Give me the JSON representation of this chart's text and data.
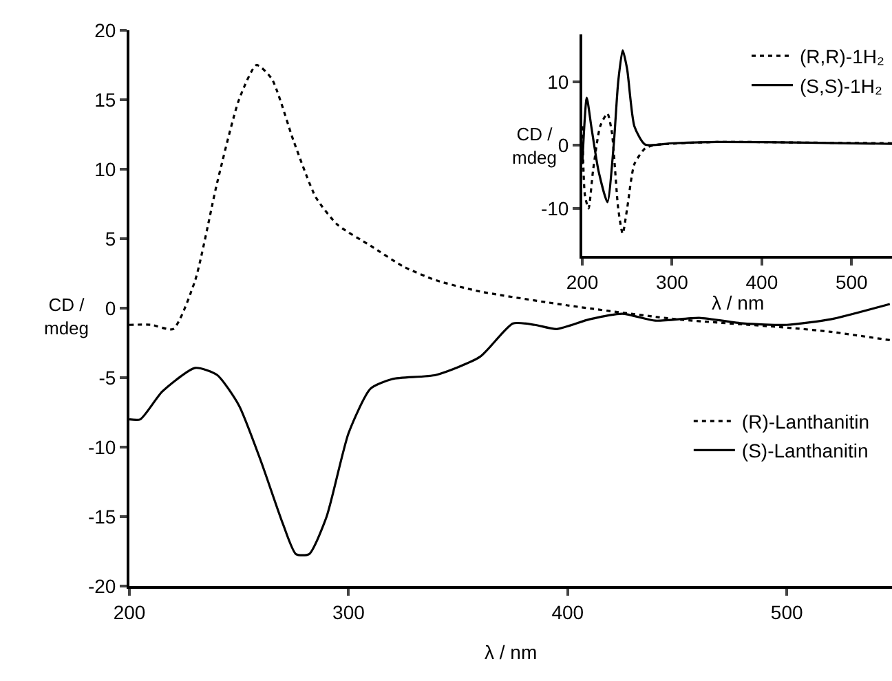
{
  "chart_data": [
    {
      "type": "line",
      "xlabel": "λ / nm",
      "ylabel": "CD / mdeg",
      "xlim": [
        200,
        548
      ],
      "ylim": [
        -20,
        20
      ],
      "xticks": [
        200,
        300,
        400,
        500
      ],
      "yticks": [
        -20,
        -15,
        -10,
        -5,
        0,
        5,
        10,
        15,
        20
      ],
      "grid": false,
      "legend": "bottom right",
      "marker": "none",
      "series": [
        {
          "name": "(R)-Lanthanitin",
          "color": "#000000",
          "line_style": "dotted",
          "x": [
            200,
            210,
            220,
            230,
            240,
            250,
            258,
            265,
            275,
            285,
            295,
            310,
            325,
            340,
            360,
            400,
            450,
            500,
            520,
            547
          ],
          "values": [
            -1.2,
            -1.2,
            -1.5,
            2,
            9,
            15,
            17.5,
            16.5,
            12,
            8,
            6,
            4.5,
            3,
            2,
            1.2,
            0.2,
            -0.8,
            -1.4,
            -1.7,
            -2.3
          ]
        },
        {
          "name": "(S)-Lanthanitin",
          "color": "#000000",
          "line_style": "solid",
          "x": [
            200,
            205,
            215,
            230,
            240,
            250,
            260,
            270,
            276,
            282,
            290,
            300,
            310,
            320,
            340,
            360,
            375,
            385,
            395,
            410,
            425,
            440,
            460,
            480,
            500,
            520,
            547
          ],
          "values": [
            -8,
            -8,
            -6,
            -4.3,
            -4.8,
            -7,
            -11,
            -15.5,
            -17.7,
            -17.7,
            -15,
            -9,
            -5.8,
            -5.1,
            -4.8,
            -3.5,
            -1.1,
            -1.2,
            -1.5,
            -0.8,
            -0.4,
            -0.9,
            -0.7,
            -1.1,
            -1.2,
            -0.8,
            0.3
          ]
        }
      ]
    },
    {
      "type": "line",
      "xlabel": "λ / nm",
      "ylabel": "CD / mdeg",
      "xlim": [
        200,
        545
      ],
      "ylim": [
        -17.5,
        17.5
      ],
      "xticks": [
        200,
        300,
        400,
        500
      ],
      "yticks": [
        -10,
        0,
        10
      ],
      "grid": false,
      "legend": "top right",
      "marker": "none",
      "series": [
        {
          "name": "(R,R)-1H₂",
          "color": "#000000",
          "line_style": "dotted",
          "x": [
            200,
            203,
            207,
            212,
            220,
            228,
            233,
            240,
            245,
            250,
            258,
            270,
            280,
            350,
            450,
            545
          ],
          "values": [
            3,
            -8,
            -10,
            -4,
            3,
            5,
            2,
            -10,
            -14,
            -10,
            -3,
            -0.5,
            0,
            0.5,
            0.4,
            0.3
          ]
        },
        {
          "name": "(S,S)-1H₂",
          "color": "#000000",
          "line_style": "solid",
          "x": [
            200,
            205,
            210,
            218,
            228,
            235,
            240,
            245,
            250,
            258,
            270,
            300,
            350,
            450,
            545
          ],
          "values": [
            -3,
            7.5,
            3,
            -4,
            -9,
            0,
            10,
            15,
            12,
            3,
            0.1,
            0.3,
            0.5,
            0.4,
            0.2
          ]
        }
      ]
    }
  ]
}
